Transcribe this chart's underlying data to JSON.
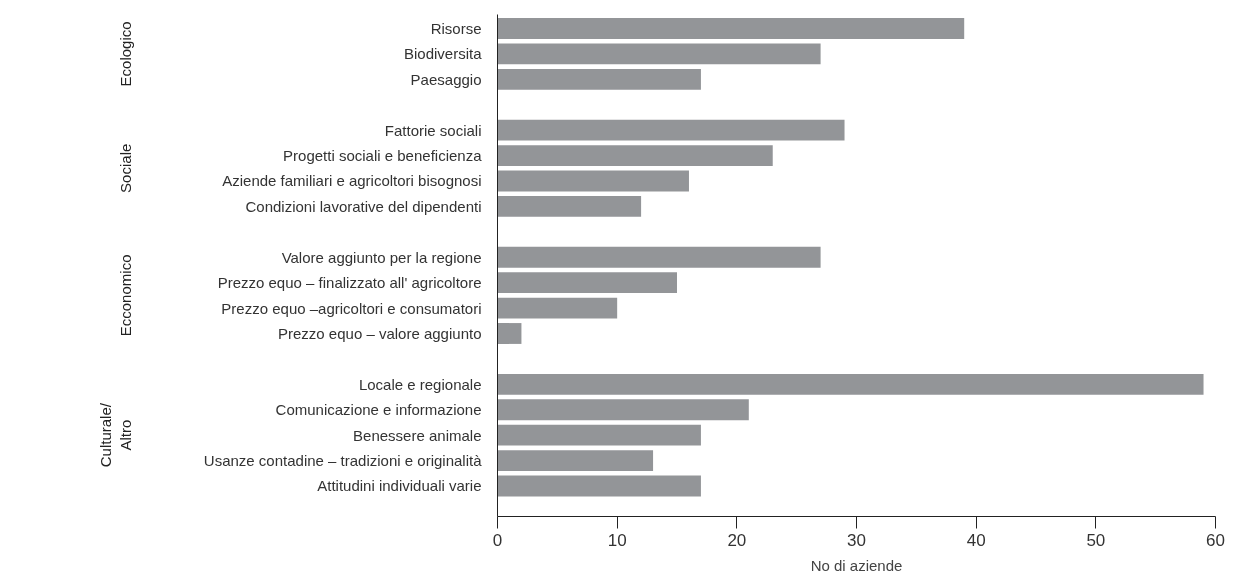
{
  "chart_data": {
    "type": "bar",
    "orientation": "horizontal",
    "xlabel": "No di aziende",
    "categories": [
      "Risorse",
      "Biodiversita",
      "Paesaggio",
      null,
      "Fattorie sociali",
      "Progetti sociali e beneficienza",
      "Aziende familiari e agricoltori bisognosi",
      "Condizioni lavorative del dipendenti",
      null,
      "Valore aggiunto per la regione",
      "Prezzo equo – finalizzato all' agricoltore",
      "Prezzo equo –agricoltori e consumatori",
      "Prezzo equo – valore aggiunto",
      null,
      "Locale e regionale",
      "Comunicazione e informazione",
      "Benessere animale",
      "Usanze contadine – tradizioni e originalità",
      "Attitudini individuali varie"
    ],
    "values": [
      39,
      27,
      17,
      null,
      29,
      23,
      16,
      12,
      null,
      27,
      15,
      10,
      2,
      null,
      59,
      21,
      17,
      13,
      17
    ],
    "color": "#939598",
    "xlim": [
      0,
      60
    ],
    "xticks": [
      0,
      10,
      20,
      30,
      40,
      50,
      60
    ],
    "grid": false,
    "annotations": [
      "Ecologico",
      "Sociale",
      "Ecconomico",
      "Culturale/\nAltro"
    ]
  }
}
